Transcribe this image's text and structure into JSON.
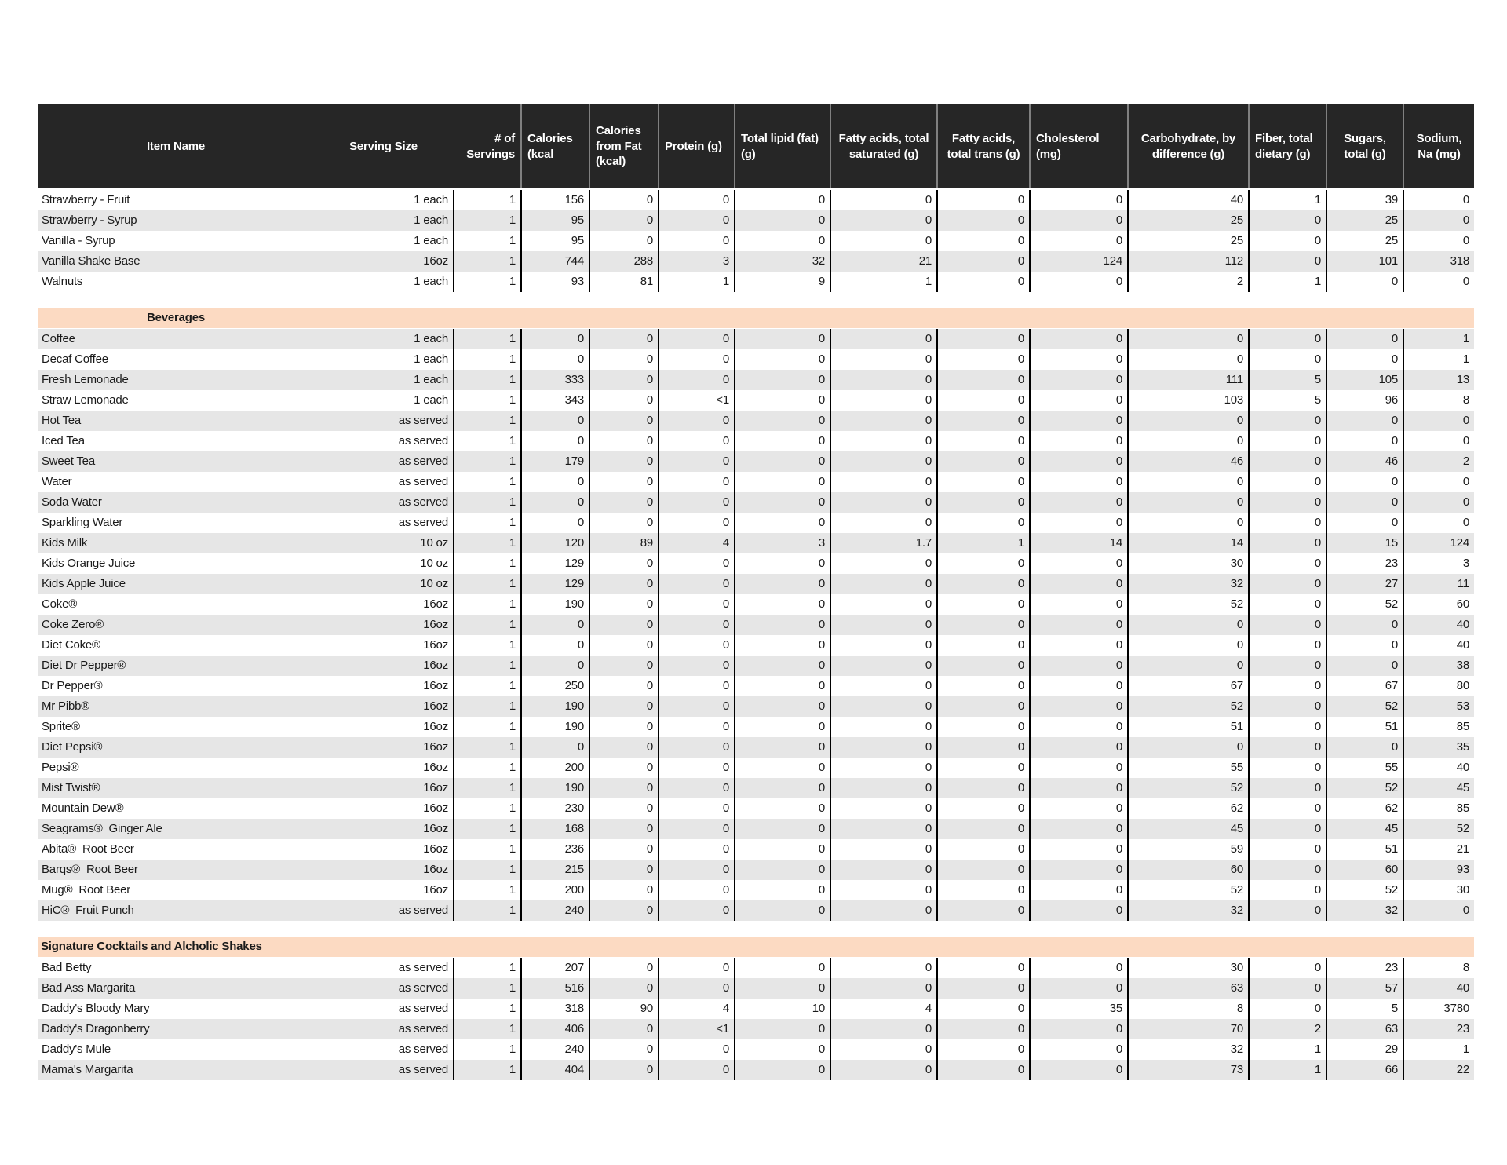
{
  "colors": {
    "header_bg": "#262626",
    "header_text": "#ffffff",
    "section_header_bg": "#fcdac2",
    "row_alt_bg": "#e6e6e6",
    "body_text": "#1a1a1a",
    "column_divider_black": "#000000",
    "header_divider_gray": "#808080"
  },
  "table": {
    "columns": [
      {
        "label": "Item Name"
      },
      {
        "label": "Serving Size"
      },
      {
        "label": "# of Servings"
      },
      {
        "label": "Calories (kcal"
      },
      {
        "label": "Calories from Fat (kcal)"
      },
      {
        "label": "Protein (g)"
      },
      {
        "label": "Total lipid (fat) (g)"
      },
      {
        "label": "Fatty acids, total saturated (g)"
      },
      {
        "label": "Fatty acids, total trans (g)"
      },
      {
        "label": "Cholesterol (mg)"
      },
      {
        "label": "Carbohydrate, by difference (g)"
      },
      {
        "label": "Fiber, total dietary (g)"
      },
      {
        "label": "Sugars, total (g)"
      },
      {
        "label": "Sodium, Na (mg)"
      }
    ],
    "sections": [
      {
        "title": "",
        "title_align": "none",
        "rows": [
          [
            "Strawberry - Fruit",
            "1 each",
            "1",
            "156",
            "0",
            "0",
            "0",
            "0",
            "0",
            "0",
            "40",
            "1",
            "39",
            "0"
          ],
          [
            "Strawberry - Syrup",
            "1 each",
            "1",
            "95",
            "0",
            "0",
            "0",
            "0",
            "0",
            "0",
            "25",
            "0",
            "25",
            "0"
          ],
          [
            "Vanilla - Syrup",
            "1 each",
            "1",
            "95",
            "0",
            "0",
            "0",
            "0",
            "0",
            "0",
            "25",
            "0",
            "25",
            "0"
          ],
          [
            "Vanilla Shake Base",
            "16oz",
            "1",
            "744",
            "288",
            "3",
            "32",
            "21",
            "0",
            "124",
            "112",
            "0",
            "101",
            "318"
          ],
          [
            "Walnuts",
            "1 each",
            "1",
            "93",
            "81",
            "1",
            "9",
            "1",
            "0",
            "0",
            "2",
            "1",
            "0",
            "0"
          ]
        ]
      },
      {
        "title": "Beverages",
        "title_align": "center",
        "rows": [
          [
            "Coffee",
            "1 each",
            "1",
            "0",
            "0",
            "0",
            "0",
            "0",
            "0",
            "0",
            "0",
            "0",
            "0",
            "1"
          ],
          [
            "Decaf Coffee",
            "1 each",
            "1",
            "0",
            "0",
            "0",
            "0",
            "0",
            "0",
            "0",
            "0",
            "0",
            "0",
            "1"
          ],
          [
            "Fresh Lemonade",
            "1 each",
            "1",
            "333",
            "0",
            "0",
            "0",
            "0",
            "0",
            "0",
            "111",
            "5",
            "105",
            "13"
          ],
          [
            "Straw Lemonade",
            "1 each",
            "1",
            "343",
            "0",
            "<1",
            "0",
            "0",
            "0",
            "0",
            "103",
            "5",
            "96",
            "8"
          ],
          [
            "Hot Tea",
            "as served",
            "1",
            "0",
            "0",
            "0",
            "0",
            "0",
            "0",
            "0",
            "0",
            "0",
            "0",
            "0"
          ],
          [
            "Iced Tea",
            "as served",
            "1",
            "0",
            "0",
            "0",
            "0",
            "0",
            "0",
            "0",
            "0",
            "0",
            "0",
            "0"
          ],
          [
            "Sweet Tea",
            "as served",
            "1",
            "179",
            "0",
            "0",
            "0",
            "0",
            "0",
            "0",
            "46",
            "0",
            "46",
            "2"
          ],
          [
            "Water",
            "as served",
            "1",
            "0",
            "0",
            "0",
            "0",
            "0",
            "0",
            "0",
            "0",
            "0",
            "0",
            "0"
          ],
          [
            "Soda Water",
            "as served",
            "1",
            "0",
            "0",
            "0",
            "0",
            "0",
            "0",
            "0",
            "0",
            "0",
            "0",
            "0"
          ],
          [
            "Sparkling Water",
            "as served",
            "1",
            "0",
            "0",
            "0",
            "0",
            "0",
            "0",
            "0",
            "0",
            "0",
            "0",
            "0"
          ],
          [
            "Kids Milk",
            "10 oz",
            "1",
            "120",
            "89",
            "4",
            "3",
            "1.7",
            "1",
            "14",
            "14",
            "0",
            "15",
            "124"
          ],
          [
            "Kids Orange Juice",
            "10 oz",
            "1",
            "129",
            "0",
            "0",
            "0",
            "0",
            "0",
            "0",
            "30",
            "0",
            "23",
            "3"
          ],
          [
            "Kids Apple Juice",
            "10 oz",
            "1",
            "129",
            "0",
            "0",
            "0",
            "0",
            "0",
            "0",
            "32",
            "0",
            "27",
            "11"
          ],
          [
            "Coke®",
            "16oz",
            "1",
            "190",
            "0",
            "0",
            "0",
            "0",
            "0",
            "0",
            "52",
            "0",
            "52",
            "60"
          ],
          [
            "Coke Zero®",
            "16oz",
            "1",
            "0",
            "0",
            "0",
            "0",
            "0",
            "0",
            "0",
            "0",
            "0",
            "0",
            "40"
          ],
          [
            "Diet Coke®",
            "16oz",
            "1",
            "0",
            "0",
            "0",
            "0",
            "0",
            "0",
            "0",
            "0",
            "0",
            "0",
            "40"
          ],
          [
            "Diet Dr Pepper®",
            "16oz",
            "1",
            "0",
            "0",
            "0",
            "0",
            "0",
            "0",
            "0",
            "0",
            "0",
            "0",
            "38"
          ],
          [
            "Dr Pepper®",
            "16oz",
            "1",
            "250",
            "0",
            "0",
            "0",
            "0",
            "0",
            "0",
            "67",
            "0",
            "67",
            "80"
          ],
          [
            "Mr Pibb®",
            "16oz",
            "1",
            "190",
            "0",
            "0",
            "0",
            "0",
            "0",
            "0",
            "52",
            "0",
            "52",
            "53"
          ],
          [
            "Sprite®",
            "16oz",
            "1",
            "190",
            "0",
            "0",
            "0",
            "0",
            "0",
            "0",
            "51",
            "0",
            "51",
            "85"
          ],
          [
            "Diet Pepsi®",
            "16oz",
            "1",
            "0",
            "0",
            "0",
            "0",
            "0",
            "0",
            "0",
            "0",
            "0",
            "0",
            "35"
          ],
          [
            "Pepsi®",
            "16oz",
            "1",
            "200",
            "0",
            "0",
            "0",
            "0",
            "0",
            "0",
            "55",
            "0",
            "55",
            "40"
          ],
          [
            "Mist Twist®",
            "16oz",
            "1",
            "190",
            "0",
            "0",
            "0",
            "0",
            "0",
            "0",
            "52",
            "0",
            "52",
            "45"
          ],
          [
            "Mountain Dew®",
            "16oz",
            "1",
            "230",
            "0",
            "0",
            "0",
            "0",
            "0",
            "0",
            "62",
            "0",
            "62",
            "85"
          ],
          [
            "Seagrams®  Ginger Ale",
            "16oz",
            "1",
            "168",
            "0",
            "0",
            "0",
            "0",
            "0",
            "0",
            "45",
            "0",
            "45",
            "52"
          ],
          [
            "Abita®  Root Beer",
            "16oz",
            "1",
            "236",
            "0",
            "0",
            "0",
            "0",
            "0",
            "0",
            "59",
            "0",
            "51",
            "21"
          ],
          [
            "Barqs®  Root Beer",
            "16oz",
            "1",
            "215",
            "0",
            "0",
            "0",
            "0",
            "0",
            "0",
            "60",
            "0",
            "60",
            "93"
          ],
          [
            "Mug®  Root Beer",
            "16oz",
            "1",
            "200",
            "0",
            "0",
            "0",
            "0",
            "0",
            "0",
            "52",
            "0",
            "52",
            "30"
          ],
          [
            "HiC®  Fruit Punch",
            "as served",
            "1",
            "240",
            "0",
            "0",
            "0",
            "0",
            "0",
            "0",
            "32",
            "0",
            "32",
            "0"
          ]
        ]
      },
      {
        "title": "Signature Cocktails and Alcholic Shakes",
        "title_align": "left",
        "rows": [
          [
            "Bad Betty",
            "as served",
            "1",
            "207",
            "0",
            "0",
            "0",
            "0",
            "0",
            "0",
            "30",
            "0",
            "23",
            "8"
          ],
          [
            "Bad Ass Margarita",
            "as served",
            "1",
            "516",
            "0",
            "0",
            "0",
            "0",
            "0",
            "0",
            "63",
            "0",
            "57",
            "40"
          ],
          [
            "Daddy's Bloody Mary",
            "as served",
            "1",
            "318",
            "90",
            "4",
            "10",
            "4",
            "0",
            "35",
            "8",
            "0",
            "5",
            "3780"
          ],
          [
            "Daddy's Dragonberry",
            "as served",
            "1",
            "406",
            "0",
            "<1",
            "0",
            "0",
            "0",
            "0",
            "70",
            "2",
            "63",
            "23"
          ],
          [
            "Daddy's Mule",
            "as served",
            "1",
            "240",
            "0",
            "0",
            "0",
            "0",
            "0",
            "0",
            "32",
            "1",
            "29",
            "1"
          ],
          [
            "Mama's Margarita",
            "as served",
            "1",
            "404",
            "0",
            "0",
            "0",
            "0",
            "0",
            "0",
            "73",
            "1",
            "66",
            "22"
          ]
        ]
      }
    ]
  }
}
